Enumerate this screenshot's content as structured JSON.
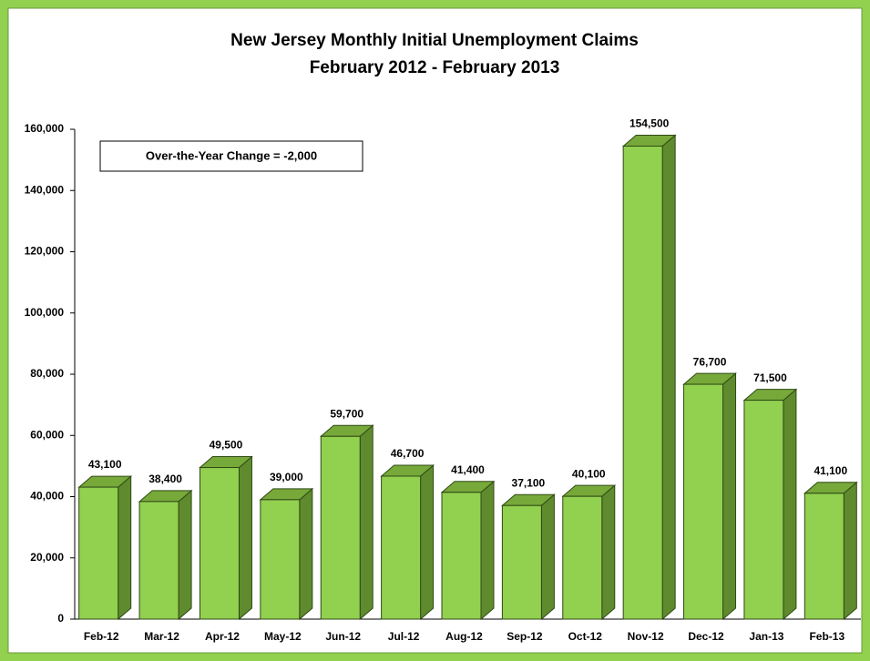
{
  "chart_data": {
    "type": "bar",
    "title": "New Jersey Monthly Initial Unemployment Claims",
    "subtitle": "February 2012 - February 2013",
    "annotation": "Over-the-Year Change = -2,000",
    "categories": [
      "Feb-12",
      "Mar-12",
      "Apr-12",
      "May-12",
      "Jun-12",
      "Jul-12",
      "Aug-12",
      "Sep-12",
      "Oct-12",
      "Nov-12",
      "Dec-12",
      "Jan-13",
      "Feb-13"
    ],
    "values": [
      43100,
      38400,
      49500,
      39000,
      59700,
      46700,
      41400,
      37100,
      40100,
      154500,
      76700,
      71500,
      41100
    ],
    "value_labels": [
      "43,100",
      "38,400",
      "49,500",
      "39,000",
      "59,700",
      "46,700",
      "41,400",
      "37,100",
      "40,100",
      "154,500",
      "76,700",
      "71,500",
      "41,100"
    ],
    "color": "#92d050",
    "ylim": [
      0,
      160000
    ],
    "yticks": [
      0,
      {
        "value": 20000,
        "label": "20,000"
      },
      {
        "value": 40000,
        "label": "40,000"
      },
      {
        "value": 60000,
        "label": "60,000"
      },
      {
        "value": 80000,
        "label": "80,000"
      },
      {
        "value": 100000,
        "label": "100,000"
      },
      {
        "value": 120000,
        "label": "120,000"
      },
      {
        "value": 140000,
        "label": "140,000"
      },
      {
        "value": 160000,
        "label": "160,000"
      }
    ],
    "grid": false
  }
}
